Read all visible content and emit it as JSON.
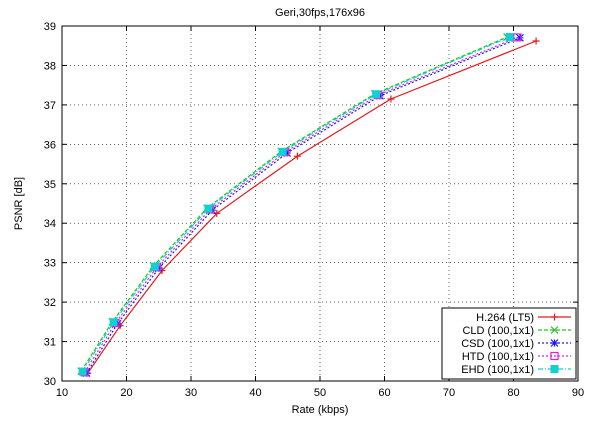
{
  "chart_data": {
    "type": "line",
    "title": "Geri,30fps,176x96",
    "xlabel": "Rate (kbps)",
    "ylabel": "PSNR [dB]",
    "xlim": [
      10,
      90
    ],
    "ylim": [
      30,
      39
    ],
    "xticks": [
      "10",
      "20",
      "30",
      "40",
      "50",
      "60",
      "70",
      "80",
      "90"
    ],
    "yticks": [
      "30",
      "31",
      "32",
      "33",
      "34",
      "35",
      "36",
      "37",
      "38",
      "39"
    ],
    "grid": true,
    "legend_position": "bottom-right",
    "series": [
      {
        "name": "H.264 (LT5)",
        "color": "#e41a1c",
        "dash": "solid",
        "marker": "plus",
        "x": [
          14.0,
          19.0,
          25.5,
          34.0,
          46.5,
          61.0,
          83.5
        ],
        "y": [
          30.2,
          31.4,
          32.8,
          34.25,
          35.7,
          37.15,
          38.62
        ]
      },
      {
        "name": "CLD (100,1x1)",
        "color": "#22c322",
        "dash": "dashed",
        "marker": "x",
        "x": [
          13.0,
          17.8,
          24.2,
          32.5,
          44.0,
          58.5,
          79.0
        ],
        "y": [
          30.25,
          31.5,
          32.92,
          34.38,
          35.82,
          37.28,
          38.72
        ]
      },
      {
        "name": "CSD (100,1x1)",
        "color": "#1a1aff",
        "dash": "dotted",
        "marker": "star",
        "x": [
          13.8,
          18.6,
          25.0,
          33.3,
          44.9,
          59.3,
          81.0
        ],
        "y": [
          30.2,
          31.45,
          32.86,
          34.33,
          35.78,
          37.23,
          38.7
        ]
      },
      {
        "name": "HTD (100,1x1)",
        "color": "#e020e0",
        "dash": "dotted",
        "marker": "square",
        "x": [
          13.5,
          18.3,
          24.7,
          33.0,
          44.6,
          59.0,
          80.6
        ],
        "y": [
          30.22,
          31.47,
          32.88,
          34.35,
          35.8,
          37.25,
          38.71
        ]
      },
      {
        "name": "EHD (100,1x1)",
        "color": "#10d0d0",
        "dash": "dashdot",
        "marker": "filled-square",
        "x": [
          13.2,
          18.0,
          24.4,
          32.7,
          44.2,
          58.7,
          79.4
        ],
        "y": [
          30.24,
          31.49,
          32.9,
          34.37,
          35.81,
          37.27,
          38.72
        ]
      }
    ]
  }
}
